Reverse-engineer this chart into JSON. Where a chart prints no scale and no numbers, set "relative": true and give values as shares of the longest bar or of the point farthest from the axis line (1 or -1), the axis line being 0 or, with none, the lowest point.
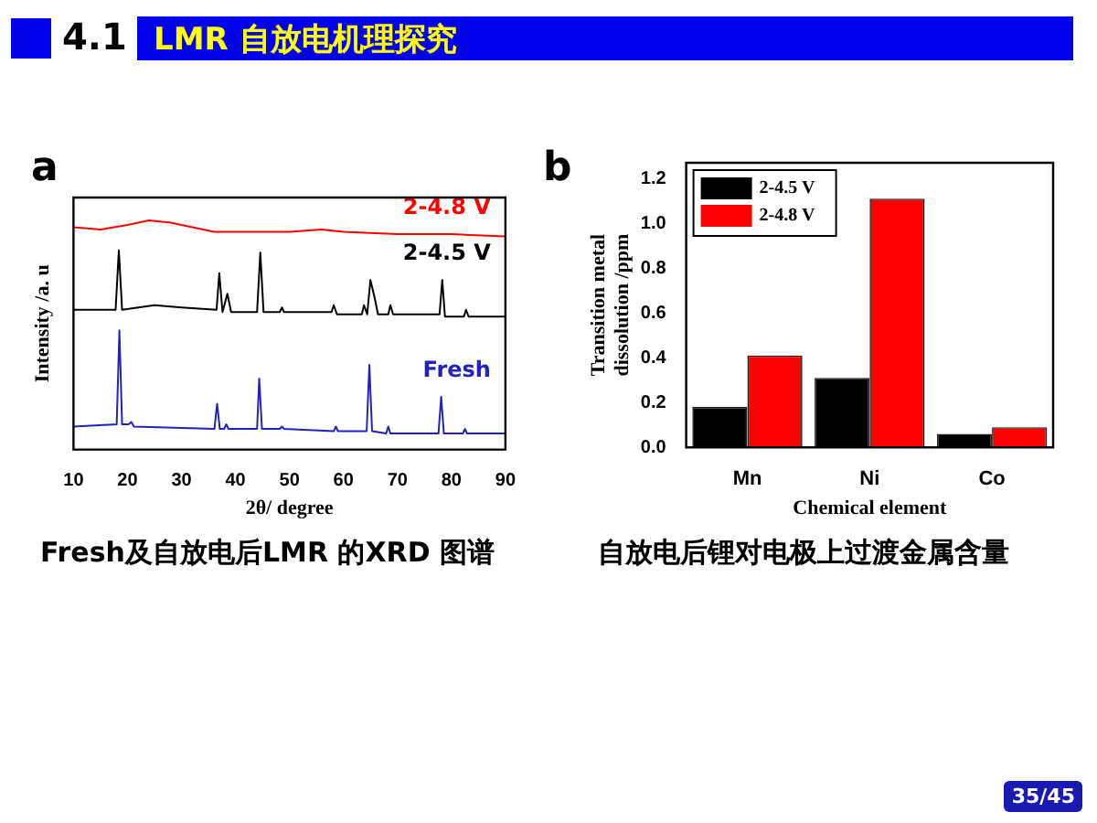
{
  "chart_data": [
    {
      "type": "line",
      "relative": true,
      "xlabel": "2θ/ degree",
      "ylabel": "Intensity /a. u",
      "xlim": [
        10,
        90
      ],
      "xticks": [
        10,
        20,
        30,
        40,
        50,
        60,
        70,
        80,
        90
      ],
      "grid": false,
      "legend": false,
      "marker": "none",
      "annotations": [
        "4.1",
        "LMR 自放电机理探究",
        "a",
        "Fresh及自放电后LMR 的XRD 图谱",
        "35/45"
      ],
      "series": [
        {
          "name": "2-4.8 V",
          "color": "#ff0000",
          "x": [
            10,
            15,
            20,
            24,
            28,
            32,
            36,
            40,
            50,
            56,
            60,
            70,
            80,
            90
          ],
          "values": [
            0.97,
            0.96,
            0.98,
            1.0,
            0.99,
            0.97,
            0.95,
            0.95,
            0.95,
            0.96,
            0.95,
            0.94,
            0.94,
            0.93
          ]
        },
        {
          "name": "2-4.5 V",
          "color": "#000000",
          "x": [
            10,
            17.8,
            18.4,
            19,
            25,
            30,
            36.5,
            37,
            37.6,
            38.5,
            39.2,
            44,
            44.6,
            45.2,
            48.2,
            48.6,
            49,
            57.8,
            58.2,
            58.8,
            63.4,
            63.8,
            64.4,
            65,
            65.8,
            66.4,
            68.3,
            68.7,
            69.2,
            77.8,
            78.3,
            78.8,
            82.3,
            82.7,
            83.2,
            90
          ],
          "values": [
            0.61,
            0.61,
            0.87,
            0.61,
            0.63,
            0.62,
            0.61,
            0.77,
            0.6,
            0.68,
            0.6,
            0.6,
            0.86,
            0.6,
            0.6,
            0.62,
            0.6,
            0.6,
            0.63,
            0.59,
            0.59,
            0.63,
            0.59,
            0.74,
            0.66,
            0.59,
            0.59,
            0.63,
            0.59,
            0.59,
            0.74,
            0.58,
            0.58,
            0.61,
            0.58,
            0.58
          ]
        },
        {
          "name": "Fresh",
          "color": "#2222c0",
          "x": [
            10,
            18,
            18.5,
            19,
            20.2,
            20.7,
            21.2,
            36.1,
            36.6,
            37.1,
            37.9,
            38.3,
            38.7,
            44,
            44.4,
            44.9,
            48.2,
            48.6,
            49,
            58.2,
            58.6,
            59,
            64.3,
            64.8,
            65.3,
            67.9,
            68.3,
            68.7,
            77.6,
            78.1,
            78.6,
            82.1,
            82.5,
            82.9,
            90
          ],
          "values": [
            0.1,
            0.11,
            0.52,
            0.11,
            0.11,
            0.12,
            0.1,
            0.09,
            0.2,
            0.09,
            0.09,
            0.11,
            0.09,
            0.09,
            0.31,
            0.09,
            0.09,
            0.1,
            0.09,
            0.08,
            0.1,
            0.08,
            0.08,
            0.37,
            0.08,
            0.07,
            0.1,
            0.07,
            0.07,
            0.23,
            0.07,
            0.07,
            0.09,
            0.07,
            0.07
          ]
        }
      ]
    },
    {
      "type": "bar",
      "categories": [
        "Mn",
        "Ni",
        "Co"
      ],
      "xlabel": "Chemical element",
      "ylabel": "Transition metal dissolution /ppm",
      "ylim": [
        0,
        1.27
      ],
      "yticks": [
        {
          "value": 0,
          "label": "0.0"
        },
        {
          "value": 0.2,
          "label": "0.2"
        },
        {
          "value": 0.4,
          "label": "0.4"
        },
        {
          "value": 0.6,
          "label": "0.6"
        },
        {
          "value": 0.8,
          "label": "0.8"
        },
        {
          "value": 1,
          "label": "1.0"
        },
        {
          "value": 1.2,
          "label": "1.2"
        }
      ],
      "grid": false,
      "legend": "top left",
      "annotations": [
        "b",
        "自放电后锂对电极上过渡金属含量"
      ],
      "series": [
        {
          "name": "2-4.5 V",
          "color": "#000000",
          "values": [
            0.18,
            0.31,
            0.06
          ]
        },
        {
          "name": "2-4.8 V",
          "color": "#ff0000",
          "values": [
            0.41,
            1.11,
            0.09
          ]
        }
      ]
    }
  ]
}
